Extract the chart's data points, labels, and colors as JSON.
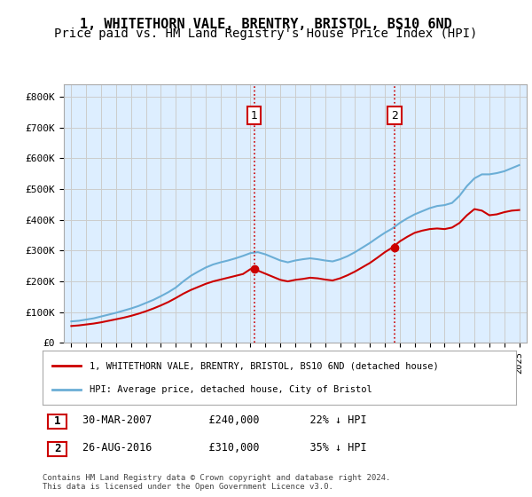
{
  "title": "1, WHITETHORN VALE, BRENTRY, BRISTOL, BS10 6ND",
  "subtitle": "Price paid vs. HM Land Registry's House Price Index (HPI)",
  "title_fontsize": 11,
  "subtitle_fontsize": 10,
  "ylabel_ticks": [
    "£0",
    "£100K",
    "£200K",
    "£300K",
    "£400K",
    "£500K",
    "£600K",
    "£700K",
    "£800K"
  ],
  "ytick_values": [
    0,
    100000,
    200000,
    300000,
    400000,
    500000,
    600000,
    700000,
    800000
  ],
  "ylim": [
    0,
    840000
  ],
  "xlim_start": 1994.5,
  "xlim_end": 2025.5,
  "xtick_years": [
    1995,
    1996,
    1997,
    1998,
    1999,
    2000,
    2001,
    2002,
    2003,
    2004,
    2005,
    2006,
    2007,
    2008,
    2009,
    2010,
    2011,
    2012,
    2013,
    2014,
    2015,
    2016,
    2017,
    2018,
    2019,
    2020,
    2021,
    2022,
    2023,
    2024,
    2025
  ],
  "hpi_color": "#6baed6",
  "price_color": "#cc0000",
  "vline_color": "#cc0000",
  "vline_style": ":",
  "grid_color": "#cccccc",
  "background_color": "#ddeeff",
  "legend_box_color": "#ffffff",
  "sale1_year": 2007.25,
  "sale1_price": 240000,
  "sale1_label": "1",
  "sale2_year": 2016.65,
  "sale2_price": 310000,
  "sale2_label": "2",
  "legend1_text": "1, WHITETHORN VALE, BRENTRY, BRISTOL, BS10 6ND (detached house)",
  "legend2_text": "HPI: Average price, detached house, City of Bristol",
  "table_row1": "1    30-MAR-2007         £240,000        22% ↓ HPI",
  "table_row2": "2    26-AUG-2016         £310,000        35% ↓ HPI",
  "footer": "Contains HM Land Registry data © Crown copyright and database right 2024.\nThis data is licensed under the Open Government Licence v3.0.",
  "hpi_x": [
    1995.0,
    1995.5,
    1996.0,
    1996.5,
    1997.0,
    1997.5,
    1998.0,
    1998.5,
    1999.0,
    1999.5,
    2000.0,
    2000.5,
    2001.0,
    2001.5,
    2002.0,
    2002.5,
    2003.0,
    2003.5,
    2004.0,
    2004.5,
    2005.0,
    2005.5,
    2006.0,
    2006.5,
    2007.0,
    2007.5,
    2008.0,
    2008.5,
    2009.0,
    2009.5,
    2010.0,
    2010.5,
    2011.0,
    2011.5,
    2012.0,
    2012.5,
    2013.0,
    2013.5,
    2014.0,
    2014.5,
    2015.0,
    2015.5,
    2016.0,
    2016.5,
    2017.0,
    2017.5,
    2018.0,
    2018.5,
    2019.0,
    2019.5,
    2020.0,
    2020.5,
    2021.0,
    2021.5,
    2022.0,
    2022.5,
    2023.0,
    2023.5,
    2024.0,
    2024.5,
    2025.0
  ],
  "hpi_y": [
    70000,
    72000,
    76000,
    80000,
    86000,
    92000,
    98000,
    105000,
    112000,
    120000,
    130000,
    140000,
    152000,
    165000,
    180000,
    200000,
    218000,
    232000,
    245000,
    255000,
    262000,
    268000,
    275000,
    283000,
    292000,
    295000,
    288000,
    278000,
    268000,
    262000,
    268000,
    272000,
    275000,
    272000,
    268000,
    265000,
    272000,
    282000,
    295000,
    310000,
    325000,
    342000,
    358000,
    372000,
    390000,
    405000,
    418000,
    428000,
    438000,
    445000,
    448000,
    455000,
    478000,
    510000,
    535000,
    548000,
    548000,
    552000,
    558000,
    568000,
    578000
  ],
  "price_x": [
    1995.0,
    1995.5,
    1996.0,
    1996.5,
    1997.0,
    1997.5,
    1998.0,
    1998.5,
    1999.0,
    1999.5,
    2000.0,
    2000.5,
    2001.0,
    2001.5,
    2002.0,
    2002.5,
    2003.0,
    2003.5,
    2004.0,
    2004.5,
    2005.0,
    2005.5,
    2006.0,
    2006.5,
    2007.0,
    2007.5,
    2008.0,
    2008.5,
    2009.0,
    2009.5,
    2010.0,
    2010.5,
    2011.0,
    2011.5,
    2012.0,
    2012.5,
    2013.0,
    2013.5,
    2014.0,
    2014.5,
    2015.0,
    2015.5,
    2016.0,
    2016.5,
    2017.0,
    2017.5,
    2018.0,
    2018.5,
    2019.0,
    2019.5,
    2020.0,
    2020.5,
    2021.0,
    2021.5,
    2022.0,
    2022.5,
    2023.0,
    2023.5,
    2024.0,
    2024.5,
    2025.0
  ],
  "price_y": [
    55000,
    57000,
    60000,
    63000,
    67000,
    72000,
    77000,
    82000,
    88000,
    95000,
    103000,
    112000,
    122000,
    133000,
    146000,
    160000,
    172000,
    182000,
    192000,
    200000,
    206000,
    212000,
    218000,
    224000,
    240000,
    235000,
    225000,
    215000,
    205000,
    200000,
    205000,
    208000,
    212000,
    210000,
    206000,
    203000,
    210000,
    220000,
    232000,
    246000,
    260000,
    277000,
    295000,
    310000,
    330000,
    345000,
    358000,
    365000,
    370000,
    372000,
    370000,
    375000,
    390000,
    415000,
    435000,
    430000,
    415000,
    418000,
    425000,
    430000,
    432000
  ]
}
